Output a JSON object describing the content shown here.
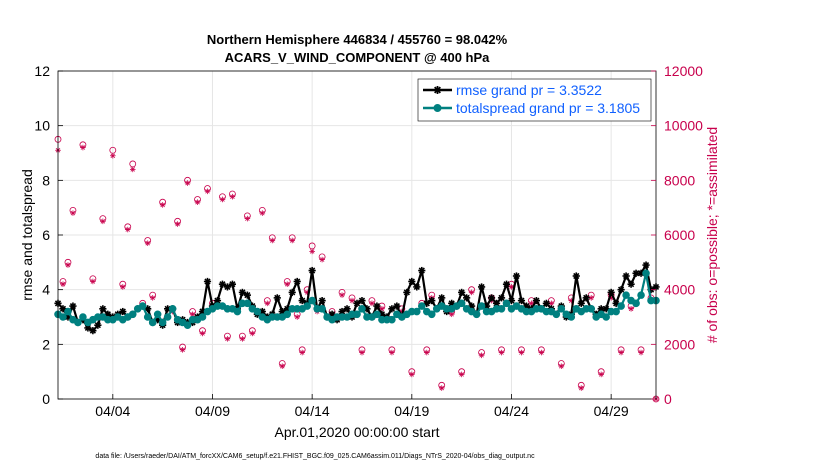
{
  "colors": {
    "rmse": "#000000",
    "spread": "#008080",
    "obs": "#c8004c",
    "legend_text": "#1060ff",
    "axis": "#000000"
  },
  "chart_data": {
    "type": "line",
    "title": "Northern Hemisphere 446834 / 455760 = 98.042%",
    "subtitle": "ACARS_V_WIND_COMPONENT @ 400 hPa",
    "xlabel": "Apr.01,2020 00:00:00 start",
    "ylabel": "rmse and totalspread",
    "y2label": "# of obs: o=possible; *=assimilated",
    "footnote": "data file: /Users/raeder/DAI/ATM_forcXX/CAM6_setup/f.e21.FHIST_BGC.f09_025.CAM6assim.011/Diags_NTrS_2020-04/obs_diag_output.nc",
    "xlim": [
      0.75,
      30.75
    ],
    "ylim": [
      0,
      12
    ],
    "y2lim": [
      0,
      12000
    ],
    "xticks": [
      {
        "x": 3.5,
        "label": "04/04"
      },
      {
        "x": 8.5,
        "label": "04/09"
      },
      {
        "x": 13.5,
        "label": "04/14"
      },
      {
        "x": 18.5,
        "label": "04/19"
      },
      {
        "x": 23.5,
        "label": "04/24"
      },
      {
        "x": 28.5,
        "label": "04/29"
      }
    ],
    "yticks": [
      0,
      2,
      4,
      6,
      8,
      10,
      12
    ],
    "y2ticks": [
      0,
      2000,
      4000,
      6000,
      8000,
      10000,
      12000
    ],
    "grid": true,
    "legend_position": "top-right",
    "series": [
      {
        "name": "rmse grand pr = 3.3522",
        "axis": "left",
        "marker": "asterisk",
        "x": [
          0.75,
          1,
          1.25,
          1.5,
          1.75,
          2,
          2.25,
          2.5,
          2.75,
          3,
          3.25,
          3.5,
          3.75,
          4,
          4.25,
          4.5,
          4.75,
          5,
          5.25,
          5.5,
          5.75,
          6,
          6.25,
          6.5,
          6.75,
          7,
          7.25,
          7.5,
          7.75,
          8,
          8.25,
          8.5,
          8.75,
          9,
          9.25,
          9.5,
          9.75,
          10,
          10.25,
          10.5,
          10.75,
          11,
          11.25,
          11.5,
          11.75,
          12,
          12.25,
          12.5,
          12.75,
          13,
          13.25,
          13.5,
          13.75,
          14,
          14.25,
          14.5,
          14.75,
          15,
          15.25,
          15.5,
          15.75,
          16,
          16.25,
          16.5,
          16.75,
          17,
          17.25,
          17.5,
          17.75,
          18,
          18.25,
          18.5,
          18.75,
          19,
          19.25,
          19.5,
          19.75,
          20,
          20.25,
          20.5,
          20.75,
          21,
          21.25,
          21.5,
          21.75,
          22,
          22.25,
          22.5,
          22.75,
          23,
          23.25,
          23.5,
          23.75,
          24,
          24.25,
          24.5,
          24.75,
          25,
          25.25,
          25.5,
          25.75,
          26,
          26.25,
          26.5,
          26.75,
          27,
          27.25,
          27.5,
          27.75,
          28,
          28.25,
          28.5,
          28.75,
          29,
          29.25,
          29.5,
          29.75,
          30,
          30.25,
          30.5,
          30.75
        ],
        "y": [
          3.5,
          3.3,
          3.0,
          3.4,
          2.8,
          2.9,
          2.6,
          2.5,
          2.7,
          3.3,
          3.1,
          3.0,
          3.1,
          3.2,
          3.0,
          3.1,
          3.3,
          3.4,
          3.3,
          2.8,
          2.9,
          2.7,
          3.3,
          3.3,
          2.8,
          2.9,
          2.8,
          2.8,
          3.0,
          3.2,
          4.3,
          3.4,
          3.6,
          4.2,
          4.1,
          4.2,
          3.3,
          3.9,
          3.8,
          3.4,
          3.1,
          3.2,
          3.0,
          3.1,
          3.7,
          3.2,
          3.3,
          3.9,
          4.3,
          3.6,
          3.5,
          4.7,
          3.3,
          3.6,
          3.0,
          3.1,
          2.9,
          3.2,
          3.3,
          3.0,
          3.5,
          3.6,
          3.3,
          3.0,
          3.4,
          3.1,
          3.0,
          3.3,
          3.4,
          3.0,
          3.9,
          4.3,
          4.1,
          4.7,
          3.5,
          3.6,
          3.3,
          3.7,
          3.2,
          3.5,
          3.4,
          3.9,
          3.7,
          3.4,
          3.1,
          4.1,
          3.4,
          3.7,
          3.5,
          3.7,
          4.2,
          3.6,
          4.5,
          3.6,
          3.4,
          3.3,
          3.6,
          3.3,
          3.5,
          3.3,
          3.1,
          3.4,
          3.0,
          3.1,
          4.5,
          3.5,
          3.7,
          3.3,
          3.1,
          3.3,
          3.3,
          3.9,
          3.5,
          4.0,
          4.5,
          4.2,
          4.6,
          4.6,
          4.9,
          4.0,
          4.1
        ]
      },
      {
        "name": "totalspread grand pr = 3.1805",
        "axis": "left",
        "marker": "circle",
        "x": [
          0.75,
          1,
          1.25,
          1.5,
          1.75,
          2,
          2.25,
          2.5,
          2.75,
          3,
          3.25,
          3.5,
          3.75,
          4,
          4.25,
          4.5,
          4.75,
          5,
          5.25,
          5.5,
          5.75,
          6,
          6.25,
          6.5,
          6.75,
          7,
          7.25,
          7.5,
          7.75,
          8,
          8.25,
          8.5,
          8.75,
          9,
          9.25,
          9.5,
          9.75,
          10,
          10.25,
          10.5,
          10.75,
          11,
          11.25,
          11.5,
          11.75,
          12,
          12.25,
          12.5,
          12.75,
          13,
          13.25,
          13.5,
          13.75,
          14,
          14.25,
          14.5,
          14.75,
          15,
          15.25,
          15.5,
          15.75,
          16,
          16.25,
          16.5,
          16.75,
          17,
          17.25,
          17.5,
          17.75,
          18,
          18.25,
          18.5,
          18.75,
          19,
          19.25,
          19.5,
          19.75,
          20,
          20.25,
          20.5,
          20.75,
          21,
          21.25,
          21.5,
          21.75,
          22,
          22.25,
          22.5,
          22.75,
          23,
          23.25,
          23.5,
          23.75,
          24,
          24.25,
          24.5,
          24.75,
          25,
          25.25,
          25.5,
          25.75,
          26,
          26.25,
          26.5,
          26.75,
          27,
          27.25,
          27.5,
          27.75,
          28,
          28.25,
          28.5,
          28.75,
          29,
          29.25,
          29.5,
          29.75,
          30,
          30.25,
          30.5,
          30.75
        ],
        "y": [
          3.1,
          3.0,
          3.2,
          2.9,
          2.8,
          3.0,
          2.8,
          2.9,
          3.0,
          3.0,
          2.9,
          2.9,
          3.0,
          2.9,
          3.0,
          3.1,
          3.3,
          3.4,
          3.0,
          2.8,
          3.1,
          2.8,
          3.0,
          3.3,
          2.9,
          2.8,
          2.7,
          2.9,
          2.9,
          3.0,
          3.2,
          3.3,
          3.4,
          3.4,
          3.3,
          3.3,
          3.2,
          3.5,
          3.5,
          3.3,
          3.2,
          3.0,
          2.9,
          3.0,
          3.0,
          3.0,
          3.1,
          3.3,
          3.3,
          3.3,
          3.4,
          3.6,
          3.3,
          3.3,
          3.0,
          2.9,
          3.0,
          3.0,
          3.0,
          3.1,
          3.1,
          3.3,
          3.0,
          3.0,
          3.1,
          2.9,
          2.9,
          2.9,
          3.1,
          3.0,
          3.1,
          3.2,
          3.2,
          3.4,
          3.2,
          3.1,
          3.3,
          3.4,
          3.3,
          3.3,
          3.4,
          3.5,
          3.3,
          3.2,
          3.1,
          3.4,
          3.2,
          3.2,
          3.3,
          3.3,
          3.5,
          3.3,
          3.4,
          3.3,
          3.2,
          3.2,
          3.3,
          3.3,
          3.2,
          3.2,
          3.1,
          3.3,
          3.1,
          3.0,
          3.3,
          3.2,
          3.3,
          3.3,
          3.0,
          3.1,
          3.0,
          3.2,
          3.2,
          3.4,
          3.8,
          3.6,
          3.5,
          3.8,
          4.6,
          3.6,
          3.6
        ]
      },
      {
        "name": "possible obs",
        "axis": "right",
        "marker": "o",
        "x": [
          0.75,
          1,
          1.25,
          1.5,
          2,
          2.5,
          3,
          3.5,
          4,
          4.25,
          4.5,
          5,
          5.25,
          5.5,
          6,
          6.5,
          6.75,
          7,
          7.25,
          7.5,
          7.75,
          8,
          8.25,
          8.5,
          9,
          9.25,
          9.5,
          10,
          10.25,
          10.5,
          11,
          11.25,
          11.5,
          12,
          12.25,
          12.5,
          12.75,
          13,
          13.25,
          13.5,
          13.75,
          14,
          14.5,
          15,
          15.5,
          16,
          16.5,
          17,
          17.5,
          18,
          18.5,
          19,
          19.25,
          19.5,
          20,
          20.5,
          21,
          21.5,
          22,
          22.5,
          23,
          23.5,
          24,
          24.5,
          25,
          25.5,
          26,
          26.5,
          27,
          27.5,
          28,
          28.5,
          29,
          29.5,
          30,
          30.5,
          30.75
        ],
        "y": [
          9500,
          4300,
          5000,
          6900,
          9300,
          4400,
          6600,
          9100,
          4200,
          6300,
          8600,
          3500,
          5800,
          3800,
          7200,
          3300,
          6500,
          1900,
          8000,
          3200,
          7300,
          2500,
          7700,
          3500,
          7400,
          2300,
          7500,
          2300,
          6700,
          2500,
          6900,
          3600,
          5900,
          1300,
          4300,
          5900,
          3100,
          1800,
          4000,
          5600,
          3300,
          5200,
          3200,
          3900,
          3700,
          1800,
          3600,
          3400,
          1800,
          3300,
          1000,
          3500,
          1800,
          3800,
          500,
          3200,
          1000,
          4000,
          1700,
          3700,
          1800,
          4200,
          1800,
          3600,
          1800,
          3600,
          1300,
          3700,
          500,
          3800,
          1000,
          3800,
          1800,
          3400,
          1800,
          3700,
          0
        ]
      },
      {
        "name": "assimilated obs",
        "axis": "right",
        "marker": "asterisk",
        "x": [
          0.75,
          1,
          1.25,
          1.5,
          2,
          2.5,
          3,
          3.5,
          4,
          4.25,
          4.5,
          5,
          5.25,
          5.5,
          6,
          6.5,
          6.75,
          7,
          7.25,
          7.5,
          7.75,
          8,
          8.25,
          8.5,
          9,
          9.25,
          9.5,
          10,
          10.25,
          10.5,
          11,
          11.25,
          11.5,
          12,
          12.25,
          12.5,
          12.75,
          13,
          13.25,
          13.5,
          13.75,
          14,
          14.5,
          15,
          15.5,
          16,
          16.5,
          17,
          17.5,
          18,
          18.5,
          19,
          19.25,
          19.5,
          20,
          20.5,
          21,
          21.5,
          22,
          22.5,
          23,
          23.5,
          24,
          24.5,
          25,
          25.5,
          26,
          26.5,
          27,
          27.5,
          28,
          28.5,
          29,
          29.5,
          30,
          30.5,
          30.75
        ],
        "y": [
          9100,
          4200,
          4900,
          6800,
          9200,
          4300,
          6500,
          8900,
          4100,
          6200,
          8400,
          3400,
          5700,
          3700,
          7100,
          3200,
          6400,
          1800,
          7900,
          3100,
          7200,
          2400,
          7600,
          3400,
          7300,
          2200,
          7400,
          2200,
          6600,
          2400,
          6800,
          3500,
          5800,
          1200,
          4200,
          5800,
          3000,
          1700,
          3900,
          5400,
          3200,
          5100,
          3100,
          3800,
          3600,
          1700,
          3500,
          3300,
          1700,
          3200,
          900,
          3400,
          1700,
          3700,
          400,
          3100,
          900,
          3900,
          1600,
          3600,
          1700,
          4100,
          1700,
          3500,
          1700,
          3500,
          1200,
          3600,
          400,
          3700,
          900,
          3700,
          1700,
          3300,
          1700,
          3600,
          0
        ]
      }
    ]
  }
}
